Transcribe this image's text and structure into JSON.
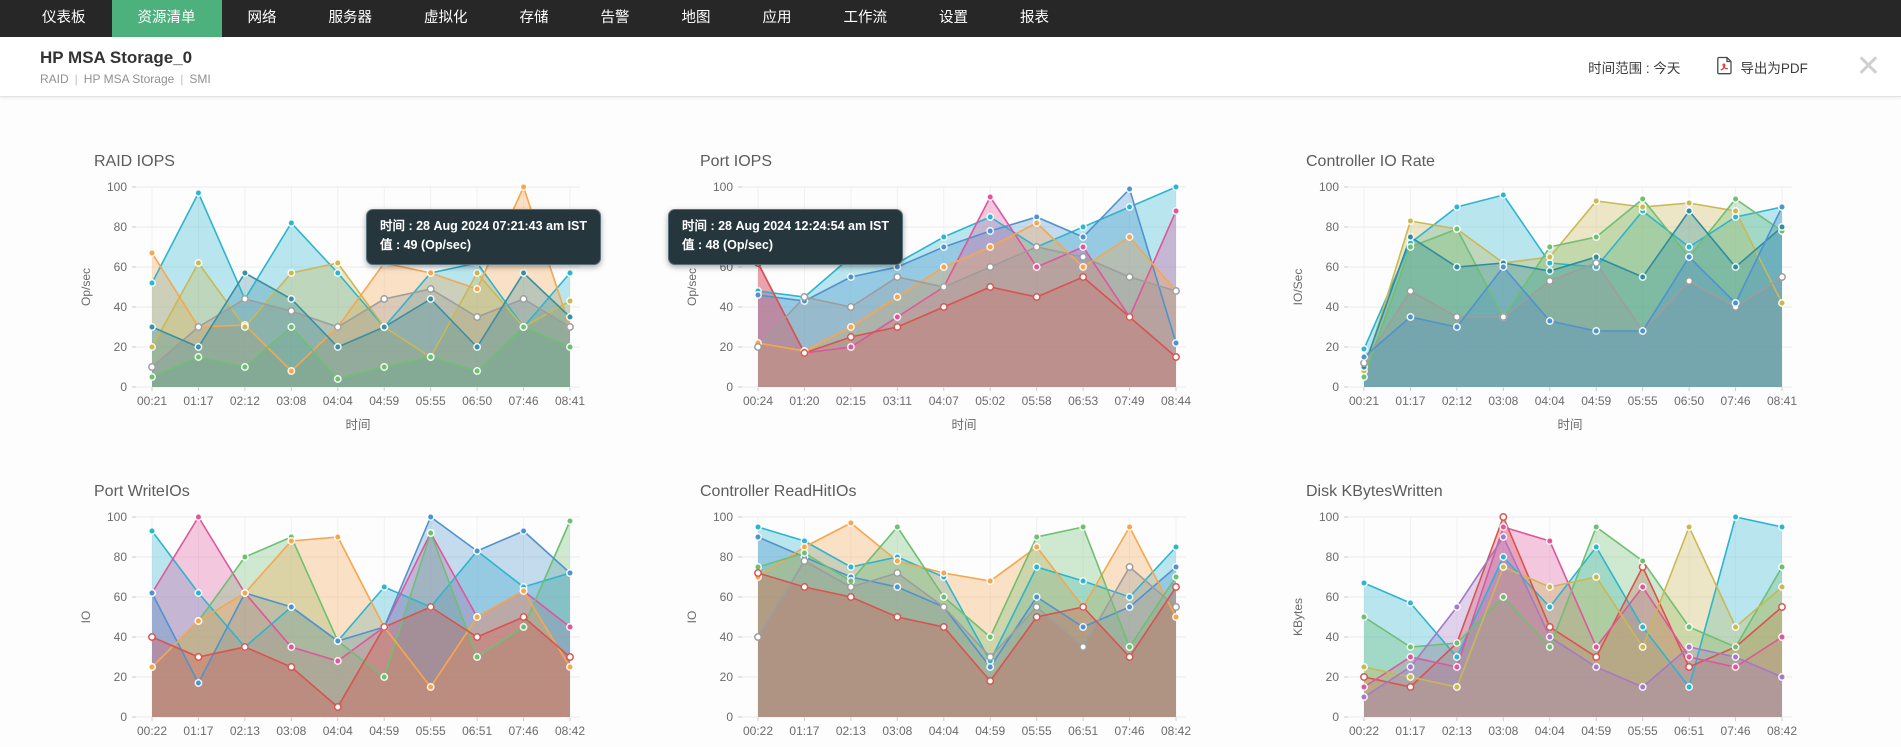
{
  "nav": {
    "tabs": [
      {
        "label": "仪表板",
        "active": false
      },
      {
        "label": "资源清单",
        "active": true
      },
      {
        "label": "网络",
        "active": false
      },
      {
        "label": "服务器",
        "active": false
      },
      {
        "label": "虚拟化",
        "active": false
      },
      {
        "label": "存储",
        "active": false
      },
      {
        "label": "告警",
        "active": false
      },
      {
        "label": "地图",
        "active": false
      },
      {
        "label": "应用",
        "active": false
      },
      {
        "label": "工作流",
        "active": false
      },
      {
        "label": "设置",
        "active": false
      },
      {
        "label": "报表",
        "active": false
      }
    ]
  },
  "header": {
    "title": "HP MSA Storage_0",
    "breadcrumb": [
      "RAID",
      "HP MSA Storage",
      "SMI"
    ],
    "time_range_label": "时间范围 : 今天",
    "export_pdf_label": "导出为PDF",
    "close_label": "✕"
  },
  "colors": {
    "nav_bg": "#272727",
    "nav_active_green": "#4cb17c",
    "tooltip_bg": "#25363d",
    "grid_line": "#ececec",
    "axis_text": "#6b6b6b"
  },
  "chart_data": [
    {
      "type": "area",
      "title": "RAID IOPS",
      "ylabel": "Op/sec",
      "xlabel": "时间",
      "ylim": [
        0,
        100
      ],
      "yticks": [
        0,
        20,
        40,
        60,
        80,
        100
      ],
      "categories": [
        "00:21",
        "01:17",
        "02:12",
        "03:08",
        "04:04",
        "04:59",
        "05:55",
        "06:50",
        "07:46",
        "08:41"
      ],
      "series": [
        {
          "name": "cyan",
          "color": "#2cb5cf",
          "values": [
            52,
            97,
            44,
            82,
            57,
            30,
            57,
            62,
            30,
            57
          ]
        },
        {
          "name": "orange",
          "color": "#f7a64e",
          "values": [
            67,
            30,
            31,
            8,
            30,
            62,
            57,
            49,
            100,
            30
          ]
        },
        {
          "name": "olive",
          "color": "#c9b954",
          "values": [
            20,
            62,
            30,
            57,
            62,
            30,
            15,
            57,
            30,
            43
          ]
        },
        {
          "name": "green",
          "color": "#6fbf73",
          "values": [
            5,
            15,
            10,
            30,
            4,
            10,
            15,
            8,
            30,
            20
          ]
        },
        {
          "name": "gray",
          "color": "#9d9d9d",
          "hollow": true,
          "values": [
            10,
            30,
            44,
            38,
            30,
            44,
            49,
            35,
            44,
            30
          ]
        },
        {
          "name": "teal",
          "color": "#3a8fa3",
          "values": [
            30,
            20,
            57,
            44,
            20,
            30,
            44,
            20,
            57,
            35
          ]
        }
      ],
      "tooltip": {
        "line1": "时间 : 28 Aug 2024 07:21:43 am IST",
        "line2": "值 : 49 (Op/sec)"
      }
    },
    {
      "type": "area",
      "title": "Port IOPS",
      "ylabel": "Op/sec",
      "xlabel": "时间",
      "ylim": [
        0,
        100
      ],
      "yticks": [
        0,
        20,
        40,
        60,
        80,
        100
      ],
      "categories": [
        "00:24",
        "01:20",
        "02:15",
        "03:11",
        "04:07",
        "05:02",
        "05:58",
        "06:53",
        "07:49",
        "08:44"
      ],
      "series": [
        {
          "name": "cyan",
          "color": "#2cb5cf",
          "values": [
            48,
            45,
            65,
            62,
            75,
            85,
            70,
            80,
            90,
            100
          ]
        },
        {
          "name": "blue",
          "color": "#4f93ce",
          "values": [
            46,
            43,
            55,
            60,
            70,
            78,
            85,
            75,
            99,
            22
          ]
        },
        {
          "name": "pink",
          "color": "#e0569a",
          "values": [
            62,
            17,
            20,
            35,
            50,
            95,
            60,
            70,
            35,
            88
          ]
        },
        {
          "name": "orange",
          "color": "#f7a64e",
          "values": [
            22,
            18,
            30,
            45,
            60,
            70,
            82,
            60,
            75,
            48
          ]
        },
        {
          "name": "red",
          "color": "#d9534f",
          "hollow": true,
          "values": [
            62,
            17,
            25,
            30,
            40,
            50,
            45,
            55,
            35,
            15
          ]
        },
        {
          "name": "gray",
          "color": "#9d9d9d",
          "hollow": true,
          "values": [
            20,
            45,
            40,
            55,
            50,
            60,
            70,
            65,
            55,
            48
          ]
        }
      ],
      "tooltip": {
        "line1": "时间 : 28 Aug 2024 12:24:54 am IST",
        "line2": "值 : 48 (Op/sec)"
      }
    },
    {
      "type": "area",
      "title": "Controller IO Rate",
      "ylabel": "IO/Sec",
      "xlabel": "时间",
      "ylim": [
        0,
        100
      ],
      "yticks": [
        0,
        20,
        40,
        60,
        80,
        100
      ],
      "categories": [
        "00:21",
        "01:17",
        "02:12",
        "03:08",
        "04:04",
        "04:59",
        "05:55",
        "06:50",
        "07:46",
        "08:41"
      ],
      "series": [
        {
          "name": "cyan",
          "color": "#2cb5cf",
          "values": [
            19,
            72,
            90,
            96,
            62,
            60,
            88,
            70,
            85,
            90
          ]
        },
        {
          "name": "olive",
          "color": "#c9b954",
          "values": [
            8,
            83,
            79,
            62,
            65,
            93,
            90,
            92,
            88,
            42
          ]
        },
        {
          "name": "green",
          "color": "#6fbf73",
          "values": [
            5,
            70,
            79,
            35,
            70,
            75,
            94,
            65,
            94,
            78
          ]
        },
        {
          "name": "teal",
          "color": "#2f8e9e",
          "values": [
            10,
            75,
            60,
            62,
            58,
            65,
            55,
            88,
            60,
            80
          ]
        },
        {
          "name": "gray",
          "color": "#9d9d9d",
          "hollow": true,
          "values": [
            12,
            48,
            35,
            35,
            53,
            62,
            28,
            53,
            40,
            55
          ]
        },
        {
          "name": "blue",
          "color": "#4f93ce",
          "values": [
            15,
            35,
            30,
            60,
            33,
            28,
            28,
            65,
            42,
            90
          ]
        }
      ]
    },
    {
      "type": "area",
      "title": "Port WriteIOs",
      "ylabel": "IO",
      "xlabel": "",
      "ylim": [
        0,
        100
      ],
      "yticks": [
        0,
        20,
        40,
        60,
        80,
        100
      ],
      "categories": [
        "00:22",
        "01:17",
        "02:13",
        "03:08",
        "04:04",
        "04:59",
        "05:55",
        "06:51",
        "07:46",
        "08:42"
      ],
      "series": [
        {
          "name": "cyan",
          "color": "#2cb5cf",
          "values": [
            93,
            62,
            35,
            55,
            38,
            65,
            55,
            83,
            65,
            72
          ]
        },
        {
          "name": "pink",
          "color": "#e0569a",
          "values": [
            62,
            100,
            62,
            35,
            28,
            45,
            92,
            50,
            63,
            45
          ]
        },
        {
          "name": "green",
          "color": "#6fbf73",
          "values": [
            25,
            48,
            80,
            90,
            38,
            20,
            92,
            30,
            45,
            98
          ]
        },
        {
          "name": "blue",
          "color": "#4f93ce",
          "values": [
            62,
            17,
            62,
            55,
            38,
            45,
            100,
            83,
            93,
            72
          ]
        },
        {
          "name": "orange",
          "color": "#f7a64e",
          "values": [
            25,
            48,
            62,
            88,
            90,
            45,
            15,
            50,
            63,
            25
          ]
        },
        {
          "name": "red",
          "color": "#d9534f",
          "hollow": true,
          "values": [
            40,
            30,
            35,
            25,
            5,
            45,
            55,
            40,
            50,
            30
          ]
        }
      ]
    },
    {
      "type": "area",
      "title": "Controller ReadHitIOs",
      "ylabel": "IO",
      "xlabel": "",
      "ylim": [
        0,
        100
      ],
      "yticks": [
        0,
        20,
        40,
        60,
        80,
        100
      ],
      "categories": [
        "00:22",
        "01:17",
        "02:13",
        "03:08",
        "04:04",
        "04:59",
        "05:55",
        "06:51",
        "07:46",
        "08:42"
      ],
      "series": [
        {
          "name": "cyan",
          "color": "#2cb5cf",
          "values": [
            95,
            88,
            75,
            80,
            70,
            28,
            75,
            68,
            60,
            85
          ]
        },
        {
          "name": "blue",
          "color": "#4f93ce",
          "values": [
            90,
            80,
            70,
            65,
            55,
            25,
            60,
            45,
            55,
            75
          ]
        },
        {
          "name": "orange",
          "color": "#f7a64e",
          "values": [
            70,
            85,
            97,
            78,
            72,
            68,
            85,
            55,
            95,
            50
          ]
        },
        {
          "name": "green",
          "color": "#6fbf73",
          "values": [
            75,
            82,
            68,
            95,
            60,
            40,
            90,
            95,
            35,
            70
          ]
        },
        {
          "name": "gray",
          "color": "#9d9d9d",
          "hollow": true,
          "values": [
            40,
            78,
            65,
            72,
            55,
            30,
            55,
            35,
            75,
            55
          ]
        },
        {
          "name": "red",
          "color": "#d9534f",
          "hollow": true,
          "values": [
            72,
            65,
            60,
            50,
            45,
            18,
            50,
            55,
            30,
            65
          ]
        }
      ]
    },
    {
      "type": "area",
      "title": "Disk KBytesWritten",
      "ylabel": "KBytes",
      "xlabel": "",
      "ylim": [
        0,
        100
      ],
      "yticks": [
        0,
        20,
        40,
        60,
        80,
        100
      ],
      "categories": [
        "00:22",
        "01:17",
        "02:13",
        "03:08",
        "04:04",
        "04:59",
        "05:55",
        "06:51",
        "07:46",
        "08:42"
      ],
      "series": [
        {
          "name": "cyan",
          "color": "#2cb5cf",
          "values": [
            67,
            57,
            30,
            80,
            55,
            85,
            45,
            15,
            100,
            95
          ]
        },
        {
          "name": "red",
          "color": "#d9534f",
          "hollow": true,
          "values": [
            20,
            15,
            37,
            100,
            45,
            30,
            75,
            25,
            35,
            55
          ]
        },
        {
          "name": "pink",
          "color": "#e0569a",
          "values": [
            15,
            30,
            25,
            95,
            88,
            35,
            65,
            30,
            25,
            40
          ]
        },
        {
          "name": "green",
          "color": "#6fbf73",
          "values": [
            50,
            35,
            37,
            60,
            35,
            95,
            78,
            45,
            35,
            75
          ]
        },
        {
          "name": "olive",
          "color": "#c9b954",
          "values": [
            25,
            20,
            15,
            75,
            65,
            70,
            35,
            95,
            45,
            65
          ]
        },
        {
          "name": "purple",
          "color": "#a678c8",
          "values": [
            10,
            25,
            55,
            90,
            40,
            25,
            15,
            35,
            30,
            20
          ]
        }
      ]
    }
  ]
}
